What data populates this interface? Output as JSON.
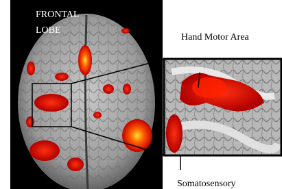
{
  "labels": {
    "frontal": "FRONTAL",
    "lobe": "LOBE",
    "hand_motor_area": "Hand Motor Area",
    "somatosensory": "Somatosensory"
  }
}
